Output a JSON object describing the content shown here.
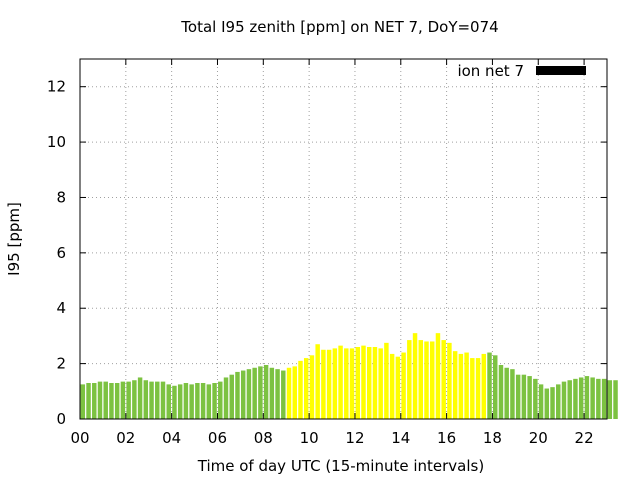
{
  "chart_data": {
    "type": "bar",
    "title": "Total I95 zenith [ppm] on NET 7, DoY=074",
    "xlabel": "Time of day UTC (15-minute intervals)",
    "ylabel": "I95 [ppm]",
    "xlim": [
      0,
      23
    ],
    "ylim": [
      0,
      13
    ],
    "x_ticks": [
      "00",
      "02",
      "04",
      "06",
      "08",
      "10",
      "12",
      "14",
      "16",
      "18",
      "20",
      "22"
    ],
    "y_ticks": [
      "0",
      "2",
      "4",
      "6",
      "8",
      "10",
      "12"
    ],
    "grid": true,
    "legend": {
      "label": "ion net 7",
      "position": "top-right",
      "color": "#000000"
    },
    "colors": {
      "night": "#7cc241",
      "day": "#ffff00"
    },
    "interval_hours": 0.25,
    "day_period": [
      9.0,
      17.75
    ],
    "values": [
      1.25,
      1.3,
      1.3,
      1.35,
      1.35,
      1.3,
      1.3,
      1.35,
      1.35,
      1.4,
      1.5,
      1.4,
      1.35,
      1.35,
      1.35,
      1.25,
      1.2,
      1.25,
      1.3,
      1.25,
      1.3,
      1.3,
      1.25,
      1.3,
      1.35,
      1.5,
      1.6,
      1.7,
      1.75,
      1.8,
      1.85,
      1.9,
      1.95,
      1.85,
      1.8,
      1.75,
      1.85,
      1.9,
      2.1,
      2.2,
      2.3,
      2.7,
      2.5,
      2.5,
      2.55,
      2.65,
      2.55,
      2.55,
      2.6,
      2.65,
      2.6,
      2.6,
      2.55,
      2.75,
      2.35,
      2.25,
      2.4,
      2.85,
      3.1,
      2.85,
      2.8,
      2.8,
      3.1,
      2.85,
      2.75,
      2.45,
      2.35,
      2.4,
      2.2,
      2.2,
      2.35,
      2.4,
      2.3,
      1.95,
      1.85,
      1.8,
      1.6,
      1.6,
      1.55,
      1.45,
      1.25,
      1.1,
      1.15,
      1.25,
      1.35,
      1.4,
      1.45,
      1.5,
      1.55,
      1.5,
      1.45,
      1.45,
      1.4,
      1.4
    ]
  }
}
